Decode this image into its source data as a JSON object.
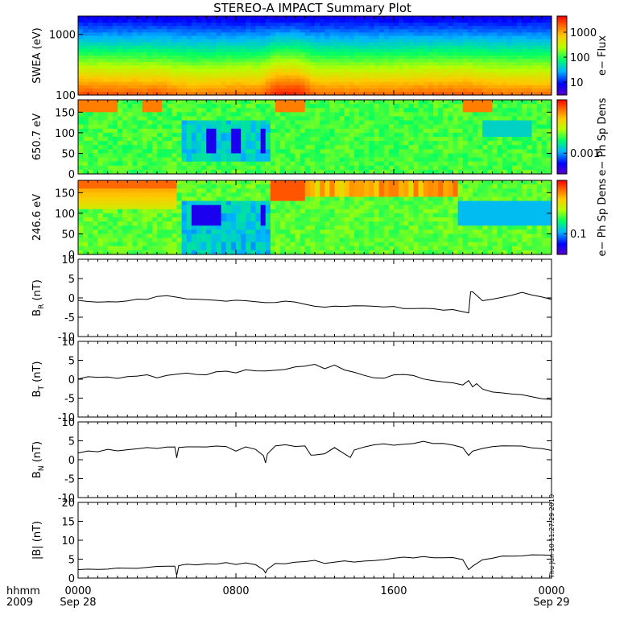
{
  "title": "STEREO-A IMPACT Summary Plot",
  "timestamp": "Thu Jun 10 11:27:29 2010",
  "x_axis": {
    "row_label_1": "hhmm",
    "row_label_2": "2009",
    "ticks": [
      {
        "t": 0,
        "time": "0000",
        "date": "Sep 28"
      },
      {
        "t": 8,
        "time": "0800",
        "date": ""
      },
      {
        "t": 16,
        "time": "1600",
        "date": ""
      },
      {
        "t": 24,
        "time": "0000",
        "date": "Sep 29"
      }
    ]
  },
  "colorbars": [
    {
      "label": "e− Flux",
      "ticks": [
        "1000",
        "100",
        "10"
      ]
    },
    {
      "label": "e− Ph Sp Dens",
      "ticks": [
        "0.001"
      ]
    },
    {
      "label": "e− Ph Sp Dens",
      "ticks": [
        "0.1"
      ]
    }
  ],
  "colors": {
    "spectrogram_palette": [
      "#5a00c8",
      "#0000ff",
      "#00b4ff",
      "#00ff64",
      "#b4ff00",
      "#ffc800",
      "#ff6400",
      "#ff0000"
    ],
    "trace": "#000000"
  },
  "chart_data": [
    {
      "type": "heatmap",
      "panel": "swea",
      "ylabel": "SWEA (eV)",
      "yscale": "log",
      "ylim": [
        100,
        2000
      ],
      "yticks": [
        "1000",
        "100"
      ],
      "xlim": [
        0,
        24
      ],
      "description_values": {
        "x_hours": [
          0,
          2,
          4,
          6,
          8,
          9.3,
          10,
          11.2,
          12,
          14,
          16,
          18,
          19.7,
          21,
          24
        ],
        "low_energy_level": [
          0.9,
          0.88,
          0.88,
          0.82,
          0.85,
          0.85,
          0.97,
          0.97,
          0.85,
          0.85,
          0.85,
          0.87,
          0.88,
          0.84,
          0.84
        ]
      }
    },
    {
      "type": "heatmap",
      "panel": "pad_650",
      "ylabel": "650.7 eV",
      "ylim": [
        0,
        180
      ],
      "yticks": [
        "150",
        "100",
        "50",
        "0"
      ],
      "xlim": [
        0,
        24
      ]
    },
    {
      "type": "heatmap",
      "panel": "pad_246",
      "ylabel": "246.6 eV",
      "ylim": [
        0,
        180
      ],
      "yticks": [
        "150",
        "100",
        "50",
        "0"
      ],
      "xlim": [
        0,
        24
      ]
    },
    {
      "type": "line",
      "panel": "br",
      "ylabel": "B",
      "ylabel_sub": "R",
      "ylabel_unit": " (nT)",
      "ylim": [
        -10,
        10
      ],
      "yticks": [
        "10",
        "5",
        "0",
        "-5",
        "-10"
      ],
      "xlim": [
        0,
        24
      ],
      "x": [
        0,
        0.5,
        1,
        1.5,
        2,
        2.5,
        3,
        3.5,
        4,
        4.5,
        5,
        5.5,
        6,
        6.5,
        7,
        7.5,
        8,
        8.5,
        9,
        9.5,
        10,
        10.5,
        11,
        11.5,
        12,
        12.5,
        13,
        13.5,
        14,
        14.5,
        15,
        15.5,
        16,
        16.5,
        17,
        17.5,
        18,
        18.5,
        19,
        19.5,
        19.8,
        19.9,
        20,
        20.5,
        21,
        21.5,
        22,
        22.5,
        23,
        23.5,
        24
      ],
      "y": [
        -0.5,
        -0.9,
        -1.0,
        -1.2,
        -1.1,
        -1.0,
        -0.4,
        -0.2,
        0.2,
        0.8,
        0.3,
        -0.4,
        -0.4,
        -0.3,
        -0.4,
        -0.7,
        -0.6,
        -0.7,
        -0.8,
        -1.0,
        -1.0,
        -0.9,
        -1.2,
        -1.5,
        -2.0,
        -2.2,
        -2.4,
        -2.0,
        -2.2,
        -2.0,
        -2.3,
        -2.5,
        -2.2,
        -2.6,
        -2.7,
        -2.8,
        -3.0,
        -3.0,
        -3.1,
        -3.5,
        -3.8,
        1.5,
        1.8,
        -0.5,
        -0.2,
        0.2,
        0.8,
        1.5,
        0.8,
        0.2,
        -0.3
      ]
    },
    {
      "type": "line",
      "panel": "bt",
      "ylabel": "B",
      "ylabel_sub": "T",
      "ylabel_unit": " (nT)",
      "ylim": [
        -10,
        10
      ],
      "yticks": [
        "10",
        "5",
        "0",
        "-5",
        "-10"
      ],
      "xlim": [
        0,
        24
      ],
      "x": [
        0,
        0.5,
        1,
        1.5,
        2,
        2.5,
        3,
        3.5,
        4,
        4.5,
        5,
        5.5,
        6,
        6.5,
        7,
        7.5,
        8,
        8.5,
        9,
        9.5,
        10,
        10.5,
        11,
        11.5,
        12,
        12.5,
        13,
        13.5,
        14,
        14.5,
        15,
        15.5,
        16,
        16.5,
        17,
        17.5,
        18,
        18.5,
        19,
        19.5,
        19.8,
        20,
        20.2,
        20.5,
        21,
        21.5,
        22,
        22.5,
        23,
        23.5,
        24
      ],
      "y": [
        0.2,
        0.5,
        0.5,
        0.8,
        0.4,
        0.8,
        0.6,
        1.2,
        0.6,
        1.0,
        1.3,
        1.5,
        1.2,
        1.4,
        2.0,
        2.2,
        1.8,
        2.5,
        2.3,
        2.0,
        2.2,
        2.6,
        3.0,
        3.5,
        3.8,
        2.8,
        3.5,
        2.5,
        1.8,
        1.0,
        0.5,
        0.3,
        0.9,
        1.5,
        0.8,
        0.0,
        -0.5,
        -0.6,
        -1.0,
        -1.4,
        -0.5,
        -2.0,
        -1.2,
        -2.5,
        -3.2,
        -3.8,
        -4.0,
        -4.2,
        -4.5,
        -5.0,
        -5.2
      ]
    },
    {
      "type": "line",
      "panel": "bn",
      "ylabel": "B",
      "ylabel_sub": "N",
      "ylabel_unit": " (nT)",
      "ylim": [
        -10,
        10
      ],
      "yticks": [
        "10",
        "5",
        "0",
        "-5",
        "-10"
      ],
      "xlim": [
        0,
        24
      ],
      "x": [
        0,
        0.5,
        1,
        1.5,
        2,
        2.5,
        3,
        3.5,
        4,
        4.5,
        4.9,
        5,
        5.1,
        5.5,
        6,
        6.5,
        7,
        7.5,
        8,
        8.5,
        9,
        9.4,
        9.5,
        9.6,
        10,
        10.5,
        11,
        11.5,
        11.8,
        12,
        12.5,
        13,
        13.5,
        13.8,
        14,
        14.5,
        15,
        15.5,
        16,
        16.5,
        17,
        17.5,
        18,
        18.5,
        19,
        19.5,
        19.8,
        20,
        20.5,
        21,
        21.5,
        22,
        22.5,
        23,
        23.5,
        24
      ],
      "y": [
        2.0,
        2.5,
        2.3,
        2.6,
        2.5,
        2.8,
        2.8,
        3.0,
        2.9,
        3.1,
        3.2,
        0.5,
        3.0,
        3.4,
        3.5,
        3.3,
        3.6,
        3.5,
        2.5,
        3.2,
        2.5,
        1.0,
        -1.0,
        1.5,
        3.5,
        3.8,
        3.6,
        3.8,
        1.0,
        1.0,
        1.5,
        3.0,
        1.5,
        0.5,
        2.5,
        3.5,
        3.8,
        4.0,
        3.6,
        4.2,
        4.5,
        4.7,
        4.3,
        4.5,
        4.0,
        3.0,
        1.0,
        2.5,
        3.0,
        3.3,
        3.5,
        3.7,
        3.5,
        3.2,
        3.0,
        2.5
      ]
    },
    {
      "type": "line",
      "panel": "bmag",
      "ylabel": "|B| (nT)",
      "ylim": [
        0,
        20
      ],
      "yticks": [
        "20",
        "15",
        "10",
        "5",
        "0"
      ],
      "xlim": [
        0,
        24
      ],
      "x": [
        0,
        0.5,
        1,
        1.5,
        2,
        2.5,
        3,
        3.5,
        4,
        4.5,
        4.9,
        5,
        5.1,
        5.5,
        6,
        6.5,
        7,
        7.5,
        8,
        8.5,
        9,
        9.4,
        9.5,
        9.6,
        10,
        10.5,
        11,
        11.5,
        12,
        12.5,
        13,
        13.5,
        14,
        14.5,
        15,
        15.5,
        16,
        16.5,
        17,
        17.5,
        18,
        18.5,
        19,
        19.5,
        19.8,
        20,
        20.5,
        21,
        21.5,
        22,
        22.5,
        23,
        23.5,
        24
      ],
      "y": [
        2.0,
        2.2,
        2.5,
        2.6,
        2.5,
        2.8,
        2.7,
        3.0,
        3.0,
        3.2,
        3.0,
        0.5,
        3.2,
        3.5,
        3.5,
        3.6,
        3.8,
        3.9,
        3.5,
        3.8,
        3.5,
        2.0,
        1.5,
        2.5,
        3.8,
        4.0,
        4.0,
        4.2,
        4.5,
        4.0,
        4.3,
        4.5,
        4.2,
        4.5,
        4.8,
        5.0,
        5.0,
        5.3,
        5.5,
        5.5,
        5.5,
        5.5,
        5.3,
        5.0,
        2.0,
        3.0,
        5.0,
        5.3,
        5.6,
        5.8,
        6.0,
        6.0,
        6.0,
        6.0
      ]
    }
  ]
}
